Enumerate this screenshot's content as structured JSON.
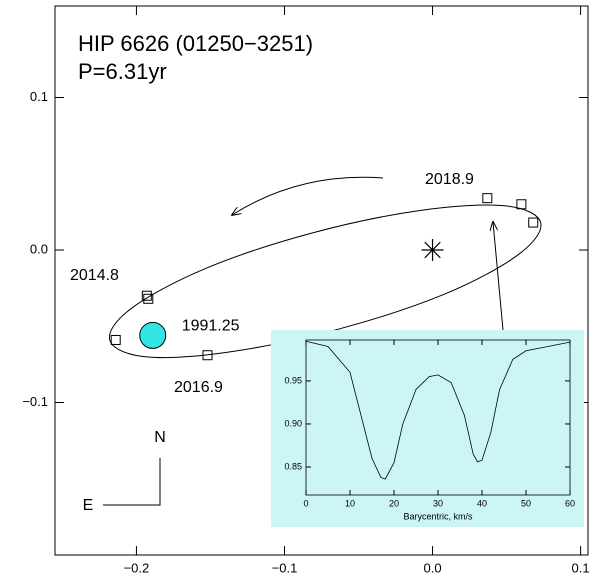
{
  "chart_data": [
    {
      "type": "scatter",
      "title": "HIP 6626 (01250−3251)",
      "subtitle": "P=6.31yr",
      "xlim": [
        -0.255,
        0.105
      ],
      "ylim": [
        -0.2,
        0.16
      ],
      "xticks": [
        {
          "value": -0.2,
          "label": "−0.2"
        },
        {
          "value": -0.1,
          "label": "−0.1"
        },
        {
          "value": 0,
          "label": "0.0"
        },
        0.1
      ],
      "yticks": [
        {
          "value": -0.1,
          "label": "−0.1"
        },
        {
          "value": 0,
          "label": "0.0"
        },
        0.1
      ],
      "annotations": [
        "2018.9",
        "2014.8",
        "2016.9"
      ],
      "compass": {
        "north": "N",
        "east": "E"
      },
      "series": [
        {
          "marker": "line",
          "color": "#000000",
          "x": [
            0.073,
            0.058,
            0.008,
            -0.064,
            -0.138,
            -0.194,
            -0.218,
            -0.203,
            -0.153,
            -0.082,
            -0.008,
            0.049
          ],
          "y": [
            0.018,
            -0.003,
            -0.029,
            -0.052,
            -0.067,
            -0.07,
            -0.059,
            -0.038,
            -0.012,
            0.011,
            0.026,
            0.029
          ]
        },
        {
          "marker": "square",
          "color": "#000000",
          "x": [
            0.037,
            0.06,
            0.068,
            -0.193,
            -0.192,
            -0.214,
            -0.152
          ],
          "y": [
            0.034,
            0.03,
            0.018,
            -0.03,
            -0.032,
            -0.059,
            -0.069
          ]
        },
        {
          "marker": "circle",
          "color": "#33e6e6",
          "name": "1991.25",
          "x": [
            -0.189
          ],
          "y": [
            -0.056
          ]
        },
        {
          "marker": "star",
          "color": "#000000",
          "x": [
            0
          ],
          "y": [
            0
          ]
        }
      ]
    },
    {
      "type": "line",
      "xlabel": "Barycentric, km/s",
      "background": "#ccf5f5",
      "xlim": [
        0,
        60
      ],
      "ylim": [
        0.8175,
        0.9975
      ],
      "xticks": [
        0,
        10,
        20,
        30,
        40,
        50,
        60
      ],
      "yticks": [
        0.85,
        {
          "value": 0.9,
          "label": "0.90"
        },
        0.95
      ],
      "series": [
        {
          "color": "#000000",
          "x": [
            0,
            5,
            10,
            13,
            15,
            17,
            18,
            20,
            22,
            25,
            28,
            30,
            33,
            36,
            38,
            39,
            40,
            42,
            44,
            47,
            50,
            55,
            60
          ],
          "values": [
            0.996,
            0.99,
            0.96,
            0.9,
            0.86,
            0.838,
            0.836,
            0.855,
            0.9,
            0.94,
            0.955,
            0.957,
            0.948,
            0.91,
            0.865,
            0.856,
            0.858,
            0.89,
            0.94,
            0.975,
            0.985,
            0.99,
            0.995
          ]
        }
      ]
    }
  ]
}
